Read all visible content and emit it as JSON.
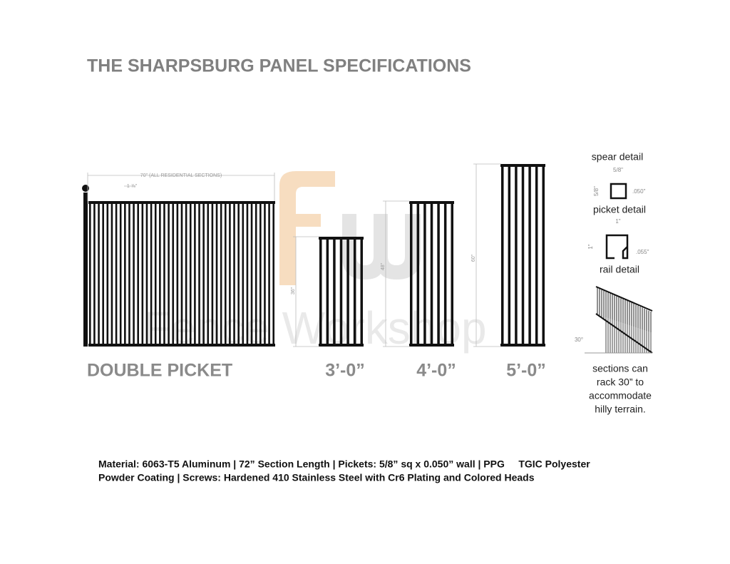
{
  "title": "THE SHARPSBURG PANEL SPECIFICATIONS",
  "watermark": {
    "logo": "fw",
    "text": "Fence Workshop"
  },
  "dimensions": {
    "width_note": "70\" (ALL RESIDENTIAL SECTIONS)",
    "picket_spacing": "1 ⅞\"",
    "heights": [
      "36\"",
      "48\"",
      "60\""
    ]
  },
  "panels": [
    "DOUBLE PICKET",
    "3’-0”",
    "4’-0”",
    "5’-0”"
  ],
  "details": {
    "spear_label": "spear detail",
    "square": {
      "width": "5/8\"",
      "height": "5/8\"",
      "wall": ".050\""
    },
    "picket_label": "picket detail",
    "channel": {
      "width": "1\"",
      "height": "1\"",
      "wall": ".055\""
    },
    "rail_label": "rail detail",
    "rack_angle": "30°"
  },
  "rack_note": [
    "sections can",
    "rack 30” to",
    "accommodate",
    "hilly terrain."
  ],
  "footer": [
    "Material: 6063-T5 Aluminum | 72” Section Length | Pickets: 5/8” sq x 0.050” wall | PPG     TGIC Polyester",
    "Powder Coating | Screws: Hardened 410 Stainless Steel with Cr6 Plating and Colored Heads"
  ]
}
